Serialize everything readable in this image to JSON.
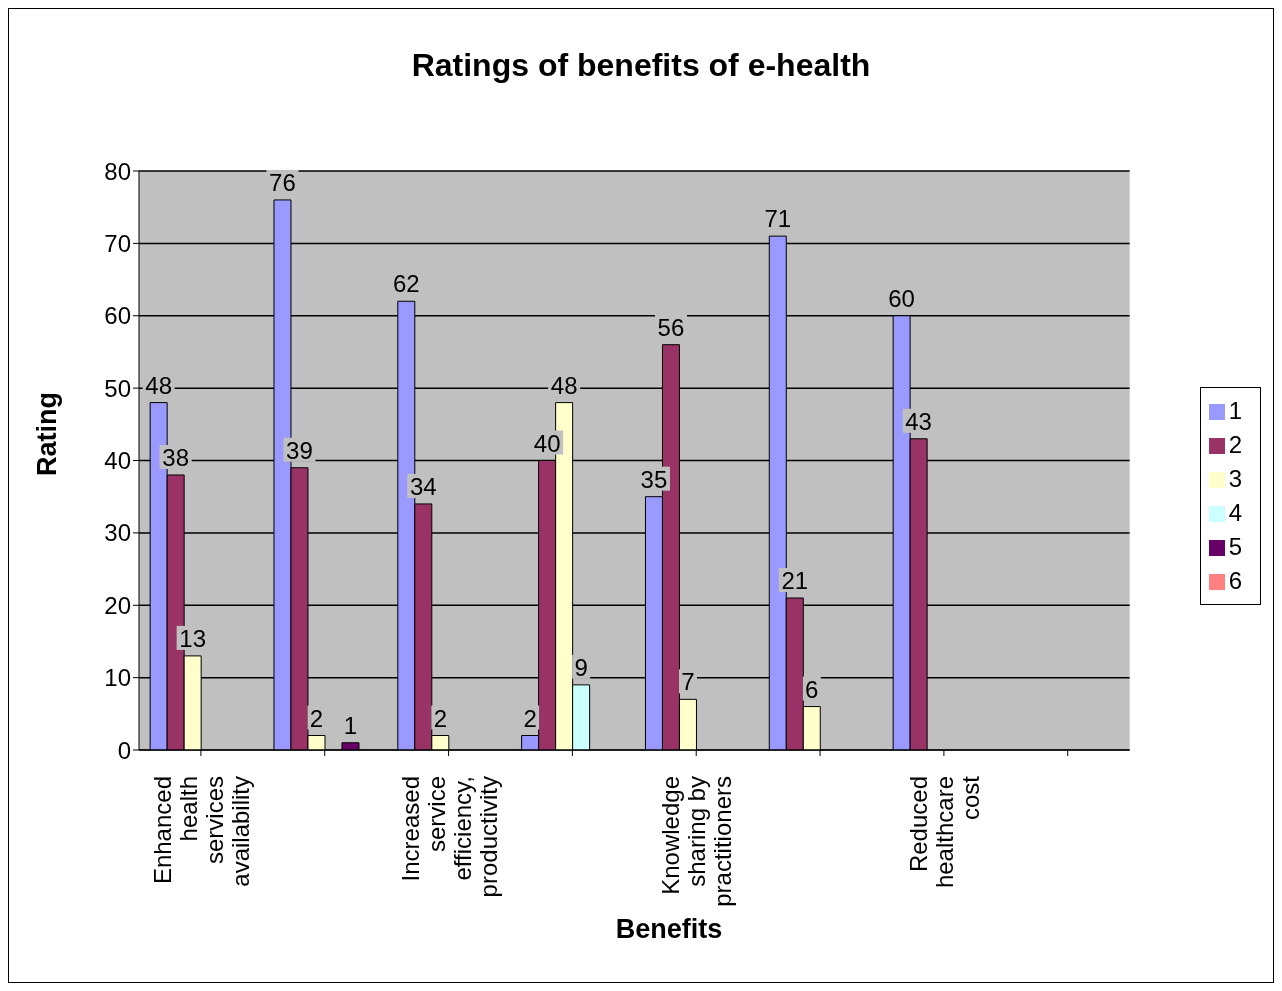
{
  "chart_data": {
    "type": "bar",
    "title": "Ratings of benefits of e-health",
    "xlabel": "Benefits",
    "ylabel": "Rating",
    "categories": [
      "Enhanced health services availability",
      null,
      "Increased service efficiency, productivity",
      null,
      "Knowledge sharing by practitioners",
      null,
      "Reduced healthcare cost",
      null
    ],
    "series": [
      {
        "name": "1",
        "color": "#9999ff",
        "values": [
          48,
          76,
          62,
          2,
          35,
          71,
          60,
          null
        ]
      },
      {
        "name": "2",
        "color": "#993366",
        "values": [
          38,
          39,
          34,
          40,
          56,
          21,
          43,
          null
        ]
      },
      {
        "name": "3",
        "color": "#ffffcc",
        "values": [
          13,
          2,
          2,
          48,
          7,
          6,
          null,
          null
        ]
      },
      {
        "name": "4",
        "color": "#ccffff",
        "values": [
          null,
          null,
          null,
          9,
          null,
          null,
          null,
          null
        ]
      },
      {
        "name": "5",
        "color": "#660066",
        "values": [
          null,
          1,
          null,
          null,
          null,
          null,
          null,
          null
        ]
      },
      {
        "name": "6",
        "color": "#ff8080",
        "values": [
          null,
          null,
          null,
          null,
          null,
          null,
          null,
          null
        ]
      }
    ],
    "ylim": [
      0,
      80
    ],
    "yticks": [
      0,
      10,
      20,
      30,
      40,
      50,
      60,
      70,
      80
    ],
    "grid": "y",
    "legend": "right",
    "data_labels": true
  }
}
